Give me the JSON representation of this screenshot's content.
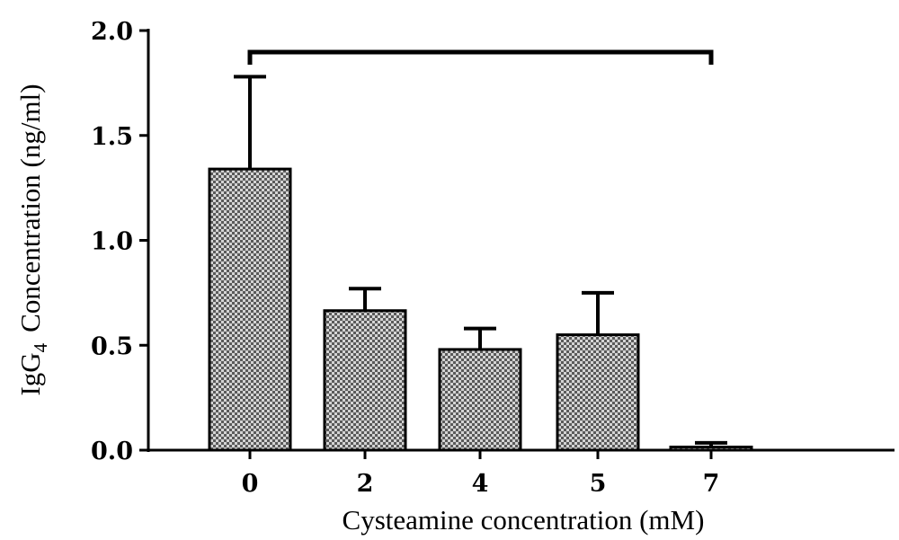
{
  "chart_data": {
    "type": "bar",
    "categories": [
      "0",
      "2",
      "4",
      "5",
      "7"
    ],
    "values": [
      1.34,
      0.665,
      0.48,
      0.55,
      0.015
    ],
    "errors": [
      0.44,
      0.105,
      0.1,
      0.2,
      0.02
    ],
    "xlabel": "Cysteamine concentration (mM)",
    "ylabel": {
      "prefix": "IgG",
      "subscript": "4",
      "suffix": "Concentration (ng/ml)"
    },
    "ylim": [
      0,
      2.0
    ],
    "yticks": [
      "0.0",
      "0.5",
      "1.0",
      "1.5",
      "2.0"
    ],
    "grid": false,
    "legend": "none",
    "bar_pattern": "checkered",
    "significance_bracket": {
      "from": "0",
      "to": "7"
    }
  }
}
